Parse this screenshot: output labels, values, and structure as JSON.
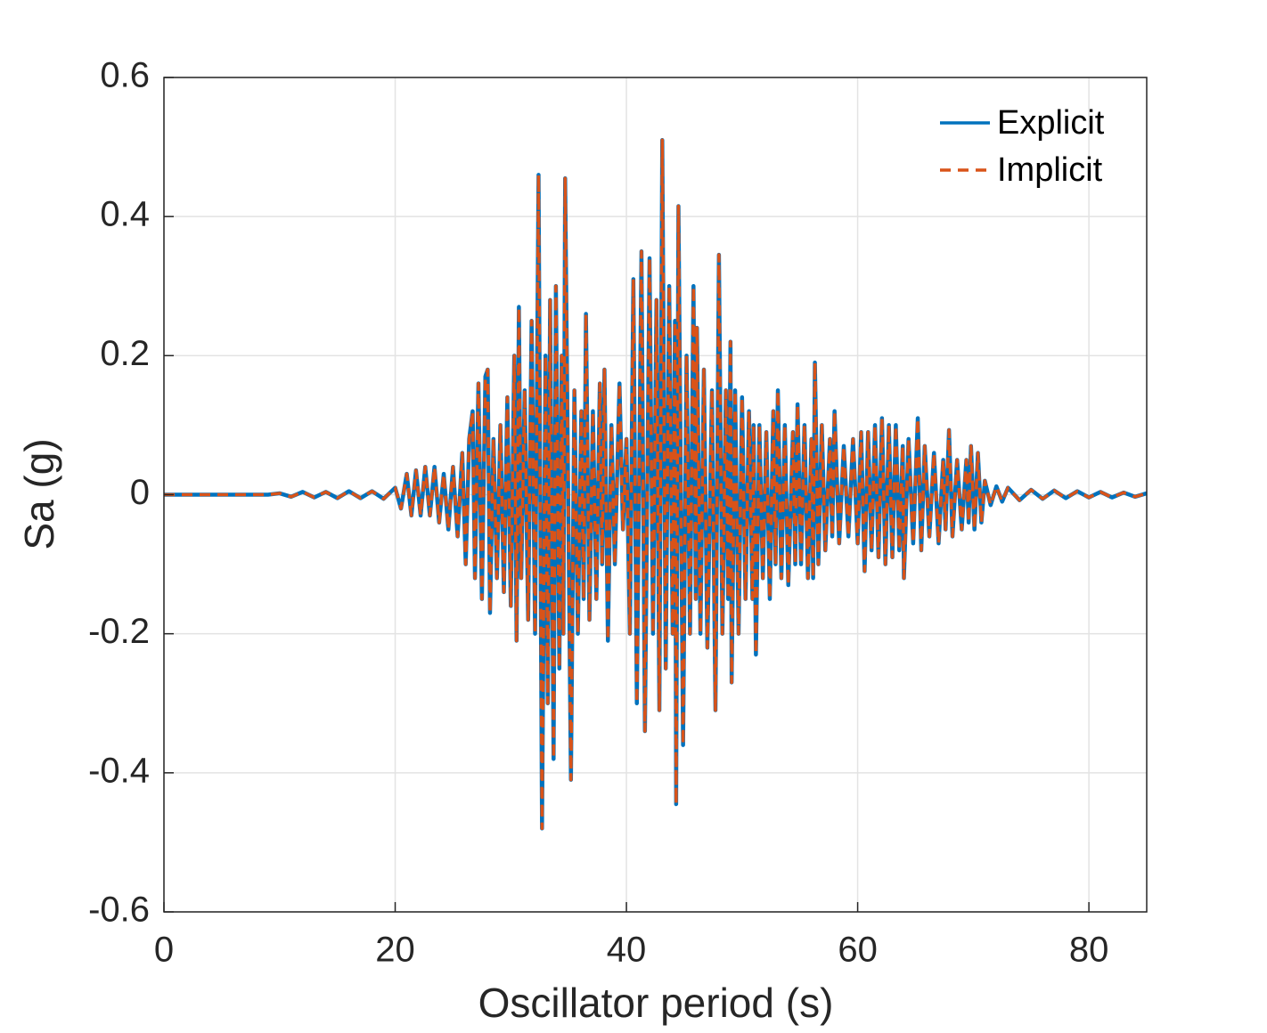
{
  "chart_data": {
    "type": "line",
    "xlabel": "Oscillator period (s)",
    "ylabel": "Sa (g)",
    "xlim": [
      0,
      85
    ],
    "ylim": [
      -0.6,
      0.6
    ],
    "xticks": [
      0,
      20,
      40,
      60,
      80
    ],
    "yticks": [
      -0.6,
      -0.4,
      -0.2,
      0,
      0.2,
      0.4,
      0.6
    ],
    "grid": true,
    "legend": "upper right",
    "x": [
      0,
      5,
      9,
      10,
      11,
      12,
      13,
      14,
      15,
      16,
      17,
      18,
      19,
      20,
      20.5,
      21,
      21.4,
      21.8,
      22.2,
      22.6,
      23.0,
      23.4,
      23.8,
      24.2,
      24.6,
      25.0,
      25.4,
      25.8,
      26.1,
      26.4,
      26.7,
      26.9,
      27.2,
      27.5,
      27.8,
      28.0,
      28.2,
      28.5,
      28.8,
      29.1,
      29.4,
      29.7,
      30.0,
      30.3,
      30.5,
      30.7,
      30.9,
      31.2,
      31.5,
      31.8,
      32.1,
      32.4,
      32.7,
      33.0,
      33.2,
      33.4,
      33.7,
      33.9,
      34.2,
      34.4,
      34.55,
      34.7,
      35.2,
      35.5,
      35.8,
      36.1,
      36.3,
      36.5,
      36.8,
      37.1,
      37.4,
      37.7,
      37.9,
      38.1,
      38.4,
      38.7,
      39.0,
      39.4,
      39.7,
      40.0,
      40.3,
      40.6,
      40.9,
      41.3,
      41.6,
      42.0,
      42.3,
      42.6,
      42.85,
      43.1,
      43.4,
      43.7,
      44.0,
      44.2,
      44.3,
      44.5,
      44.9,
      45.2,
      45.5,
      45.8,
      46.0,
      46.1,
      46.4,
      46.7,
      47.0,
      47.4,
      47.7,
      48.0,
      48.3,
      48.6,
      48.8,
      49.0,
      49.1,
      49.4,
      49.7,
      50.0,
      50.3,
      50.6,
      50.9,
      51.0,
      51.2,
      51.5,
      51.8,
      52.1,
      52.4,
      52.7,
      52.9,
      53.1,
      53.4,
      53.7,
      54.0,
      54.4,
      54.6,
      54.8,
      55.1,
      55.4,
      55.7,
      56.0,
      56.15,
      56.3,
      56.6,
      56.9,
      57.2,
      57.6,
      57.8,
      58.0,
      58.4,
      58.8,
      59.2,
      59.6,
      60.0,
      60.3,
      60.6,
      60.9,
      61.2,
      61.5,
      61.8,
      62.1,
      62.4,
      62.7,
      63.0,
      63.3,
      63.6,
      63.9,
      64.0,
      64.4,
      64.8,
      65.2,
      65.5,
      65.8,
      66.2,
      66.6,
      67.0,
      67.4,
      67.6,
      67.9,
      68.2,
      68.6,
      69.0,
      69.4,
      69.6,
      69.8,
      70.1,
      70.4,
      70.7,
      71.0,
      71.5,
      72,
      72.5,
      73,
      74,
      75,
      76,
      77,
      78,
      79,
      80,
      81,
      82,
      83,
      84,
      85
    ],
    "series": [
      {
        "name": "Explicit",
        "color": "#0072BD",
        "linestyle": "solid",
        "values": [
          0,
          0,
          0,
          0.002,
          -0.003,
          0.004,
          -0.004,
          0.004,
          -0.005,
          0.005,
          -0.005,
          0.005,
          -0.006,
          0.01,
          -0.02,
          0.03,
          -0.03,
          0.035,
          -0.03,
          0.04,
          -0.03,
          0.04,
          -0.04,
          0.03,
          -0.05,
          0.04,
          -0.06,
          0.06,
          -0.1,
          0.08,
          0.12,
          -0.12,
          0.16,
          -0.15,
          0.17,
          0.18,
          -0.17,
          0.08,
          -0.12,
          0.1,
          -0.14,
          0.14,
          -0.16,
          0.2,
          -0.21,
          0.27,
          -0.12,
          0.15,
          -0.18,
          0.25,
          -0.2,
          0.46,
          -0.48,
          0.2,
          -0.3,
          0.28,
          -0.38,
          0.3,
          -0.25,
          0.2,
          -0.2,
          0.455,
          -0.41,
          0.15,
          -0.2,
          0.12,
          -0.15,
          0.26,
          -0.18,
          0.12,
          -0.15,
          0.16,
          -0.1,
          0.18,
          -0.21,
          0.1,
          -0.1,
          0.16,
          -0.05,
          0.08,
          -0.2,
          0.31,
          -0.3,
          0.35,
          -0.34,
          0.34,
          -0.2,
          0.28,
          -0.31,
          0.51,
          -0.25,
          0.3,
          -0.2,
          0.25,
          -0.445,
          0.415,
          -0.36,
          0.2,
          -0.2,
          0.3,
          -0.15,
          0.24,
          -0.2,
          0.18,
          -0.22,
          0.15,
          -0.31,
          0.345,
          -0.2,
          0.15,
          -0.15,
          0.22,
          -0.27,
          0.15,
          -0.2,
          0.14,
          -0.15,
          0.12,
          -0.15,
          0.1,
          -0.23,
          0.1,
          -0.12,
          0.09,
          -0.15,
          0.12,
          -0.1,
          0.15,
          -0.12,
          0.1,
          -0.13,
          0.09,
          -0.1,
          0.13,
          -0.1,
          0.1,
          -0.12,
          0.08,
          -0.12,
          0.19,
          -0.1,
          0.1,
          -0.08,
          0.08,
          -0.06,
          0.12,
          -0.07,
          0.07,
          -0.06,
          0.08,
          -0.07,
          0.09,
          -0.11,
          0.09,
          -0.08,
          0.1,
          -0.09,
          0.11,
          -0.1,
          0.1,
          -0.09,
          0.1,
          -0.08,
          0.07,
          -0.12,
          0.08,
          -0.07,
          0.11,
          -0.08,
          0.07,
          -0.06,
          0.06,
          -0.07,
          0.05,
          -0.05,
          0.093,
          -0.06,
          0.05,
          -0.05,
          0.05,
          -0.04,
          0.07,
          -0.05,
          0.06,
          -0.04,
          0.02,
          -0.015,
          0.012,
          -0.01,
          0.01,
          -0.008,
          0.007,
          -0.006,
          0.006,
          -0.005,
          0.005,
          -0.004,
          0.004,
          -0.004,
          0.003,
          -0.003,
          0.002
        ]
      },
      {
        "name": "Implicit",
        "color": "#D95319",
        "linestyle": "dashed",
        "values": [
          0,
          0,
          0,
          0.002,
          -0.003,
          0.004,
          -0.004,
          0.004,
          -0.005,
          0.005,
          -0.005,
          0.005,
          -0.006,
          0.01,
          -0.02,
          0.03,
          -0.03,
          0.035,
          -0.03,
          0.04,
          -0.03,
          0.04,
          -0.04,
          0.03,
          -0.05,
          0.04,
          -0.06,
          0.06,
          -0.1,
          0.08,
          0.12,
          -0.12,
          0.16,
          -0.15,
          0.17,
          0.18,
          -0.17,
          0.08,
          -0.12,
          0.1,
          -0.14,
          0.14,
          -0.16,
          0.2,
          -0.21,
          0.27,
          -0.12,
          0.15,
          -0.18,
          0.25,
          -0.2,
          0.46,
          -0.48,
          0.2,
          -0.3,
          0.28,
          -0.38,
          0.3,
          -0.25,
          0.2,
          -0.2,
          0.455,
          -0.41,
          0.15,
          -0.2,
          0.12,
          -0.15,
          0.26,
          -0.18,
          0.12,
          -0.15,
          0.16,
          -0.1,
          0.18,
          -0.21,
          0.1,
          -0.1,
          0.16,
          -0.05,
          0.08,
          -0.2,
          0.31,
          -0.3,
          0.35,
          -0.34,
          0.34,
          -0.2,
          0.28,
          -0.31,
          0.51,
          -0.25,
          0.3,
          -0.2,
          0.25,
          -0.445,
          0.415,
          -0.36,
          0.2,
          -0.2,
          0.3,
          -0.15,
          0.24,
          -0.2,
          0.18,
          -0.22,
          0.15,
          -0.31,
          0.345,
          -0.2,
          0.15,
          -0.15,
          0.22,
          -0.27,
          0.15,
          -0.2,
          0.14,
          -0.15,
          0.12,
          -0.15,
          0.1,
          -0.23,
          0.1,
          -0.12,
          0.09,
          -0.15,
          0.12,
          -0.1,
          0.15,
          -0.12,
          0.1,
          -0.13,
          0.09,
          -0.1,
          0.13,
          -0.1,
          0.1,
          -0.12,
          0.08,
          -0.12,
          0.19,
          -0.1,
          0.1,
          -0.08,
          0.08,
          -0.06,
          0.12,
          -0.07,
          0.07,
          -0.06,
          0.08,
          -0.07,
          0.09,
          -0.11,
          0.09,
          -0.08,
          0.1,
          -0.09,
          0.11,
          -0.1,
          0.1,
          -0.09,
          0.1,
          -0.08,
          0.07,
          -0.12,
          0.08,
          -0.07,
          0.11,
          -0.08,
          0.07,
          -0.06,
          0.06,
          -0.07,
          0.05,
          -0.05,
          0.093,
          -0.06,
          0.05,
          -0.05,
          0.05,
          -0.04,
          0.07,
          -0.05,
          0.06,
          -0.04,
          0.02,
          -0.015,
          0.012,
          -0.01,
          0.01,
          -0.008,
          0.007,
          -0.006,
          0.006,
          -0.005,
          0.005,
          -0.004,
          0.004,
          -0.004,
          0.003,
          -0.003,
          0.002
        ]
      }
    ]
  }
}
